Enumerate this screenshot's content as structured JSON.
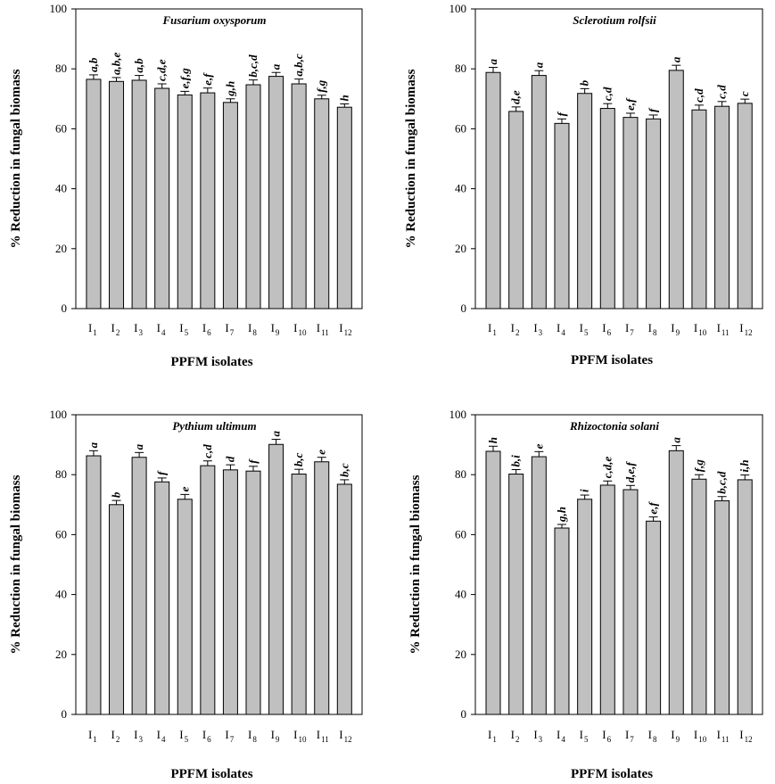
{
  "chart_data": [
    {
      "type": "bar",
      "title": "Fusarium oxysporum",
      "xlabel": "PPFM isolates",
      "ylabel": "% Reduction in fungal biomass",
      "ylim": [
        0,
        100
      ],
      "yticks": [
        0,
        20,
        40,
        60,
        80,
        100
      ],
      "categories": [
        "I1",
        "I2",
        "I3",
        "I4",
        "I5",
        "I6",
        "I7",
        "I8",
        "I9",
        "I10",
        "I11",
        "I12"
      ],
      "values": [
        76.5,
        75.8,
        76.2,
        73.5,
        71.3,
        72.0,
        68.8,
        74.7,
        77.5,
        75.0,
        70.0,
        67.2
      ],
      "errors": [
        1.5,
        1.3,
        1.6,
        1.5,
        1.2,
        1.6,
        1.2,
        1.6,
        1.3,
        1.6,
        1.2,
        1.1
      ],
      "letters": [
        "a,b",
        "a,b,e",
        "a,b",
        "c,d,e",
        "e,f,g",
        "e,f",
        "g,h",
        "b,c,d",
        "a",
        "a,b,c",
        "f,g",
        "h"
      ]
    },
    {
      "type": "bar",
      "title": "Sclerotium rolfsii",
      "xlabel": "PPFM isolates",
      "ylabel": "% Reduction in fungal biomass",
      "ylim": [
        0,
        100
      ],
      "yticks": [
        0,
        20,
        40,
        60,
        80,
        100
      ],
      "categories": [
        "I1",
        "I2",
        "I3",
        "I4",
        "I5",
        "I6",
        "I7",
        "I8",
        "I9",
        "I10",
        "I11",
        "I12"
      ],
      "values": [
        78.8,
        65.8,
        77.8,
        61.8,
        71.8,
        66.8,
        63.8,
        63.3,
        79.5,
        66.3,
        67.5,
        68.5
      ],
      "errors": [
        1.7,
        1.5,
        1.6,
        1.5,
        1.6,
        1.6,
        1.4,
        1.3,
        1.7,
        1.6,
        1.6,
        1.4
      ],
      "letters": [
        "a",
        "d,e",
        "a",
        "f",
        "b",
        "c,d",
        "e,f",
        "f",
        "a",
        "c,d",
        "c,d",
        "c"
      ]
    },
    {
      "type": "bar",
      "title": "Pythium ultimum",
      "xlabel": "PPFM isolates",
      "ylabel": "% Reduction in fungal biomass",
      "ylim": [
        0,
        100
      ],
      "yticks": [
        0,
        20,
        40,
        60,
        80,
        100
      ],
      "categories": [
        "I1",
        "I2",
        "I3",
        "I4",
        "I5",
        "I6",
        "I7",
        "I8",
        "I9",
        "I10",
        "I11",
        "I12"
      ],
      "values": [
        86.3,
        70.0,
        85.8,
        77.6,
        71.8,
        83.0,
        81.6,
        81.2,
        90.1,
        80.2,
        84.3,
        76.8
      ],
      "errors": [
        1.7,
        1.4,
        1.6,
        1.3,
        1.6,
        1.6,
        1.7,
        1.6,
        1.7,
        1.6,
        1.5,
        1.5
      ],
      "letters": [
        "a",
        "b",
        "a",
        "f",
        "e",
        "c,d",
        "d",
        "f",
        "a",
        "b,c",
        "e",
        "b,c"
      ]
    },
    {
      "type": "bar",
      "title": "Rhizoctonia solani",
      "xlabel": "PPFM isolates",
      "ylabel": "% Reduction in fungal biomass",
      "ylim": [
        0,
        100
      ],
      "yticks": [
        0,
        20,
        40,
        60,
        80,
        100
      ],
      "categories": [
        "I1",
        "I2",
        "I3",
        "I4",
        "I5",
        "I6",
        "I7",
        "I8",
        "I9",
        "I10",
        "I11",
        "I12"
      ],
      "values": [
        87.8,
        80.2,
        86.0,
        62.2,
        71.8,
        76.5,
        75.0,
        64.5,
        88.0,
        78.5,
        71.3,
        78.3
      ],
      "errors": [
        1.7,
        1.5,
        1.7,
        1.2,
        1.4,
        1.4,
        1.4,
        1.4,
        1.7,
        1.5,
        1.4,
        1.6
      ],
      "letters": [
        "h",
        "b,i",
        "e",
        "g,h",
        "i",
        "c,d,e",
        "d,e,f",
        "e,f",
        "a",
        "f,g",
        "b,c,d",
        "i,h"
      ]
    }
  ]
}
